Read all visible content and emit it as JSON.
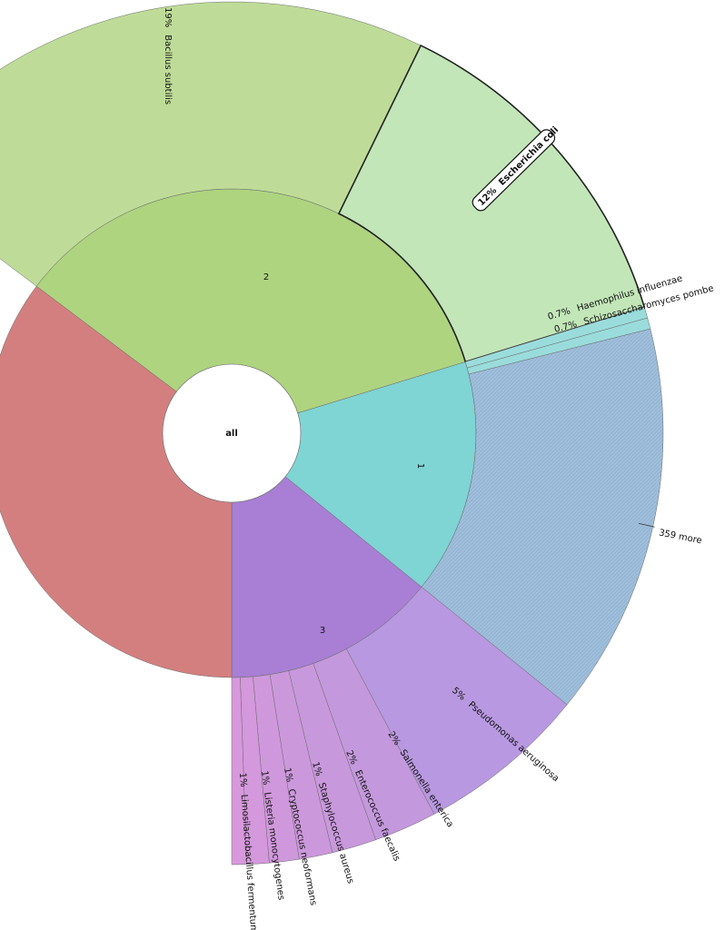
{
  "chart_data": {
    "type": "sunburst",
    "center_label": "all",
    "groups": [
      {
        "label": "1",
        "color": "#7fd4d4"
      },
      {
        "label": "2",
        "color": "#aed47f"
      },
      {
        "label": "3",
        "color": "#a87fd4"
      },
      {
        "label": "",
        "color": "#d47f7f"
      }
    ],
    "leaves": [
      {
        "group": "2",
        "pct": "19%",
        "name": "Bacillus subtilis",
        "color": "#bedc98"
      },
      {
        "group": "2",
        "pct": "12%",
        "name": "Escherichia coli",
        "color": "#c2e6b8",
        "selected": true
      },
      {
        "group": "1",
        "pct": "0.7%",
        "name": "Haemophilus influenzae",
        "color": "#9adcdc"
      },
      {
        "group": "1",
        "pct": "0.7%",
        "name": "Schizosaccharomyces pombe",
        "color": "#9adcdc"
      },
      {
        "group": "1",
        "pct": "",
        "name": "359 more",
        "color": "#96b7d6",
        "hatched": true
      },
      {
        "group": "3",
        "pct": "5%",
        "name": "Pseudomonas aeruginosa",
        "color": "#b898e0"
      },
      {
        "group": "3",
        "pct": "2%",
        "name": "Salmonella enterica",
        "color": "#c498dc"
      },
      {
        "group": "3",
        "pct": "2%",
        "name": "Enterococcus faecalis",
        "color": "#c898dc"
      },
      {
        "group": "3",
        "pct": "1%",
        "name": "Staphylococcus aureus",
        "color": "#cc98dc"
      },
      {
        "group": "3",
        "pct": "1%",
        "name": "Cryptococcus neoformans",
        "color": "#d098dc"
      },
      {
        "group": "3",
        "pct": "1%",
        "name": "Listeria monocytogenes",
        "color": "#d498dc"
      },
      {
        "group": "3",
        "pct": "1%",
        "name": "Limosilactobacillus fermentum",
        "color": "#d898dc"
      }
    ]
  }
}
